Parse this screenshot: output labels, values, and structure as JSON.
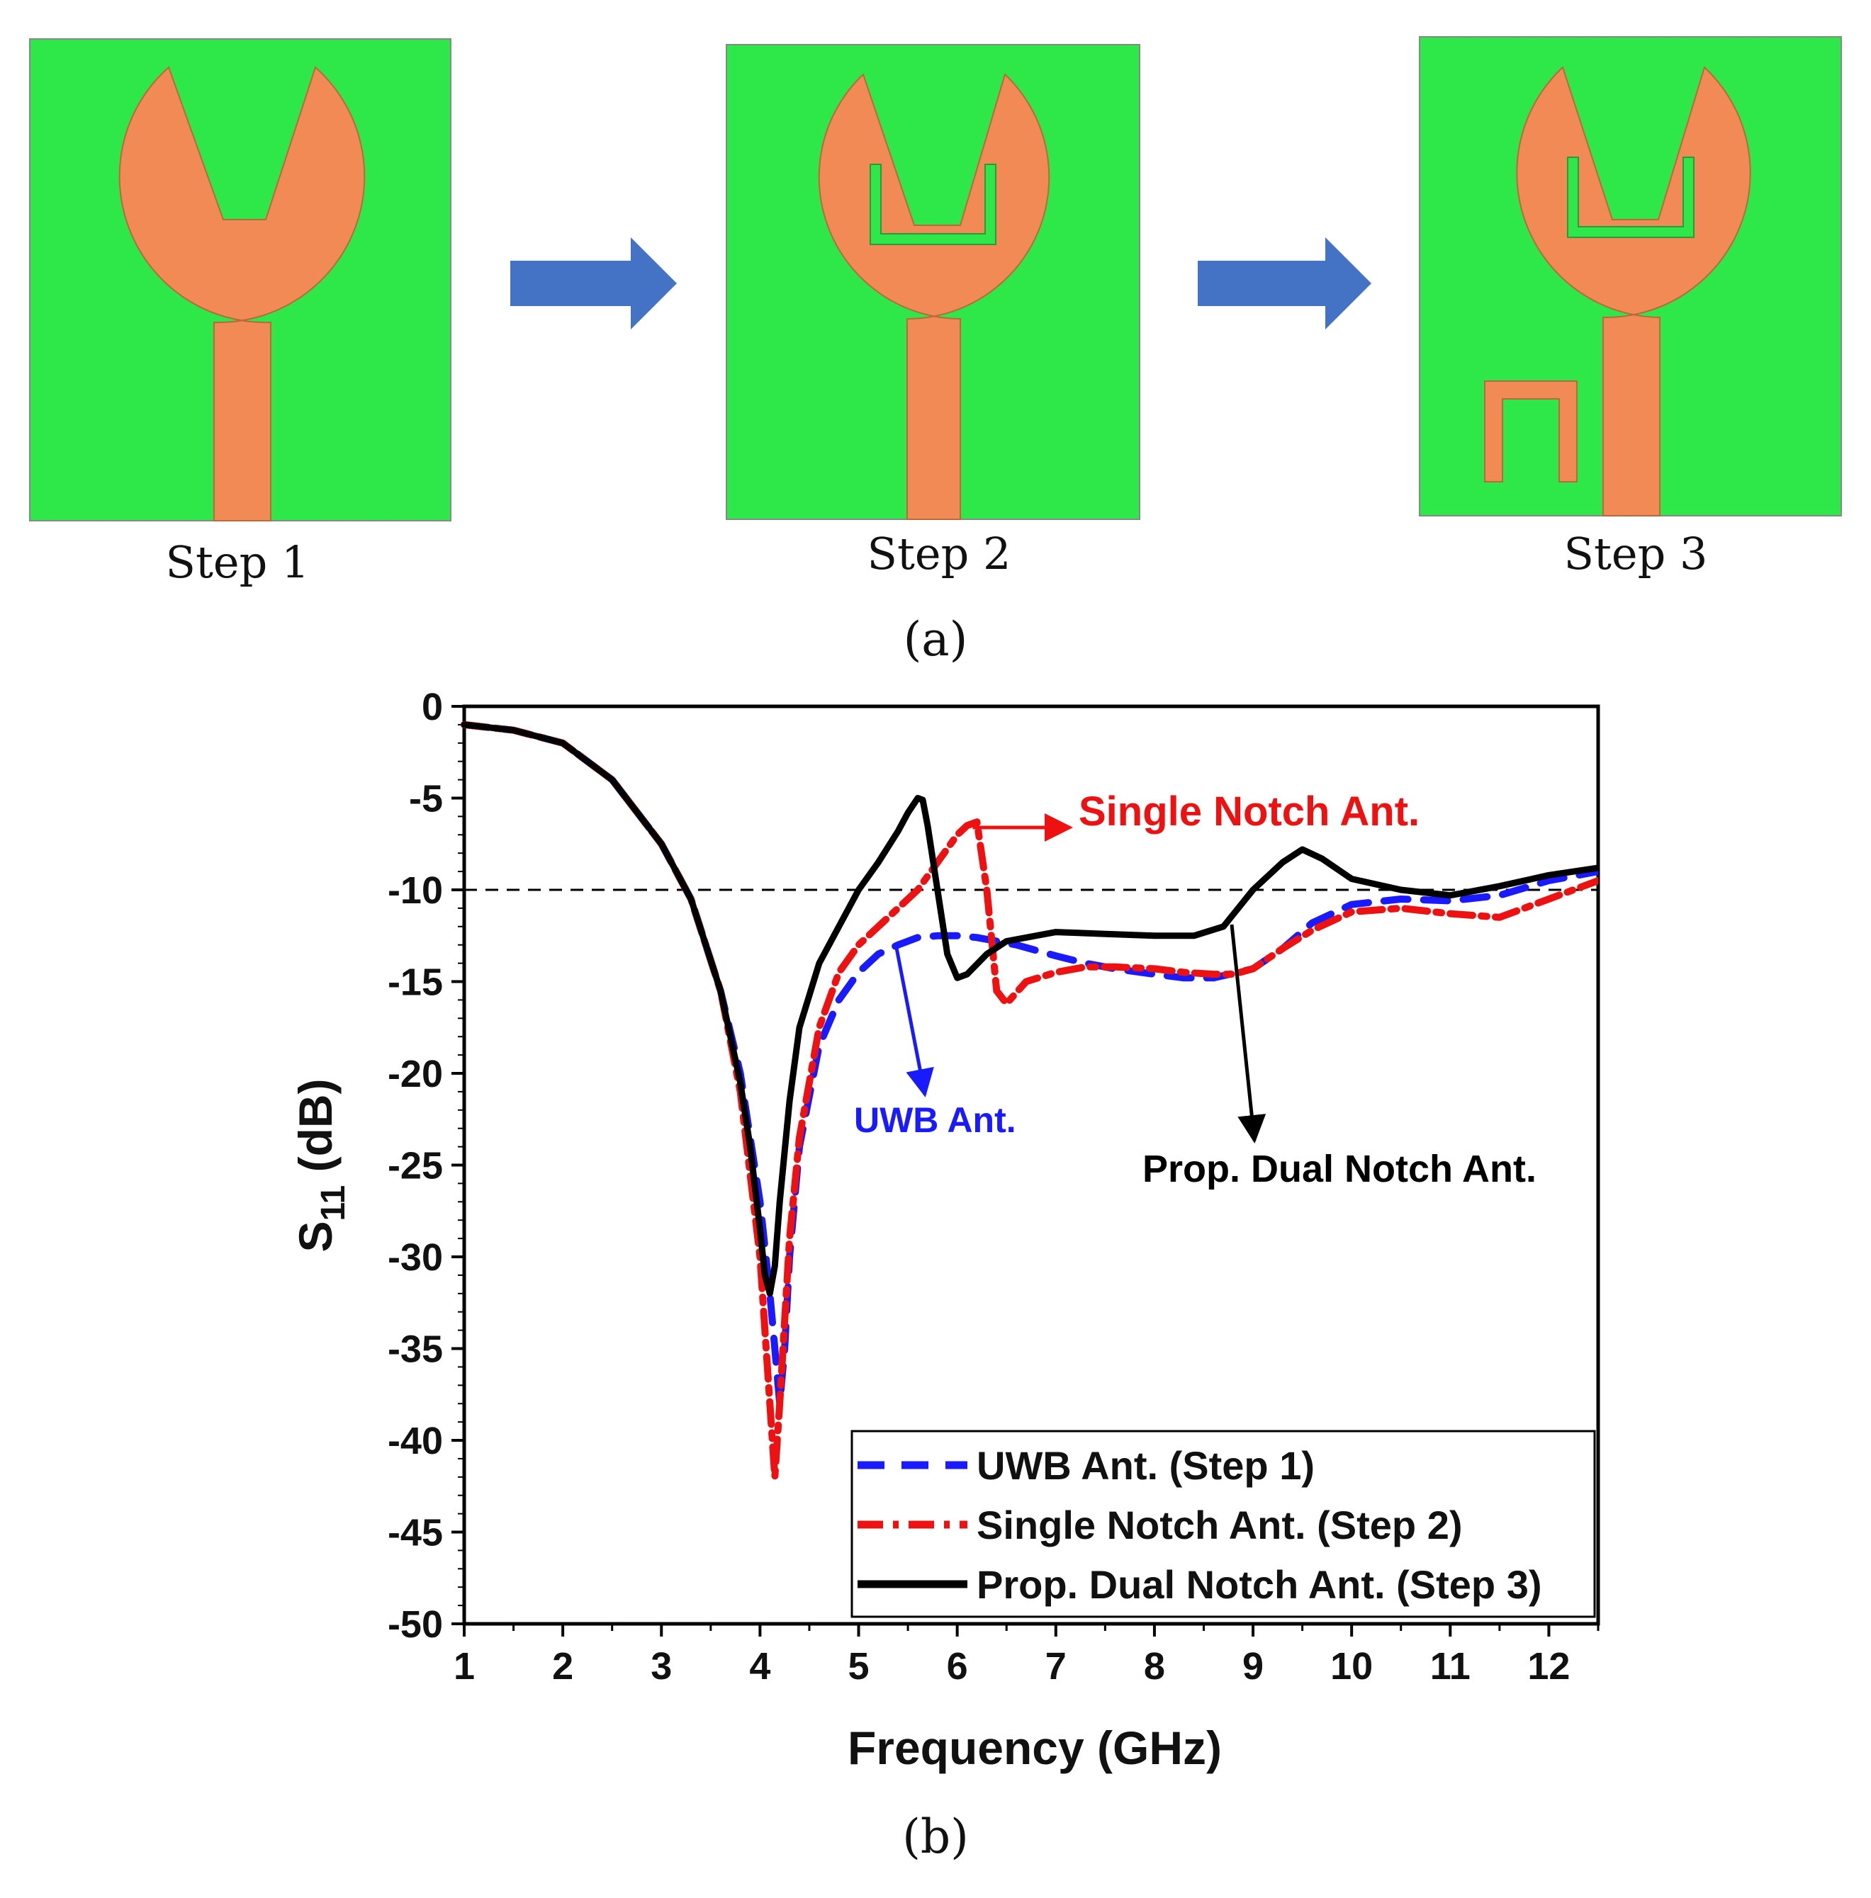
{
  "part_a": {
    "caption": "(a)",
    "steps": [
      {
        "label": "Step 1"
      },
      {
        "label": "Step 2"
      },
      {
        "label": "Step 3"
      }
    ],
    "colors": {
      "substrate": "#2ee84a",
      "patch": "#f28a55",
      "arrow": "#4472c4"
    }
  },
  "part_b": {
    "caption": "(b)"
  },
  "chart_data": {
    "type": "line",
    "title": "",
    "xlabel": "Frequency (GHz)",
    "ylabel_main": "S",
    "ylabel_sub": "11",
    "ylabel_unit": " (dB)",
    "xlim": [
      1,
      12.5
    ],
    "ylim": [
      -50,
      0
    ],
    "xticks": [
      1,
      2,
      3,
      4,
      5,
      6,
      7,
      8,
      9,
      10,
      11,
      12
    ],
    "yticks": [
      0,
      -5,
      -10,
      -15,
      -20,
      -25,
      -30,
      -35,
      -40,
      -45,
      -50
    ],
    "reference_line": -10,
    "series": [
      {
        "name": "UWB Ant. (Step 1)",
        "color": "#1a1aff",
        "style": "dash",
        "x": [
          1.0,
          1.5,
          2.0,
          2.5,
          3.0,
          3.3,
          3.6,
          3.8,
          4.0,
          4.1,
          4.15,
          4.2,
          4.25,
          4.3,
          4.4,
          4.6,
          4.8,
          5.0,
          5.2,
          5.4,
          5.6,
          5.8,
          6.0,
          6.2,
          6.4,
          6.6,
          6.8,
          7.0,
          7.3,
          7.6,
          8.0,
          8.3,
          8.6,
          9.0,
          9.3,
          9.6,
          10.0,
          10.5,
          11.0,
          11.5,
          12.0,
          12.5
        ],
        "y": [
          -1.0,
          -1.3,
          -2.0,
          -4.0,
          -7.5,
          -10.5,
          -15.5,
          -20.0,
          -27.0,
          -32.0,
          -35.0,
          -38.0,
          -35.0,
          -30.0,
          -24.0,
          -18.5,
          -16.0,
          -14.5,
          -13.5,
          -13.0,
          -12.6,
          -12.5,
          -12.5,
          -12.6,
          -12.8,
          -13.0,
          -13.3,
          -13.6,
          -14.0,
          -14.3,
          -14.6,
          -14.8,
          -14.8,
          -14.3,
          -13.2,
          -11.8,
          -10.8,
          -10.5,
          -10.6,
          -10.3,
          -9.5,
          -9.0
        ]
      },
      {
        "name": "Single Notch Ant. (Step 2)",
        "color": "#ee1111",
        "style": "dashdot",
        "x": [
          1.0,
          1.5,
          2.0,
          2.5,
          3.0,
          3.3,
          3.6,
          3.8,
          4.0,
          4.05,
          4.1,
          4.15,
          4.2,
          4.3,
          4.4,
          4.6,
          4.8,
          5.0,
          5.2,
          5.4,
          5.6,
          5.8,
          6.0,
          6.1,
          6.2,
          6.3,
          6.4,
          6.5,
          6.7,
          7.0,
          7.3,
          7.6,
          8.0,
          8.3,
          8.6,
          8.8,
          9.0,
          9.3,
          9.6,
          10.0,
          10.5,
          11.0,
          11.5,
          12.0,
          12.5
        ],
        "y": [
          -1.0,
          -1.3,
          -2.0,
          -4.0,
          -7.5,
          -10.5,
          -15.5,
          -21.0,
          -30.0,
          -34.0,
          -38.0,
          -42.0,
          -38.0,
          -29.0,
          -23.5,
          -17.5,
          -14.5,
          -13.0,
          -12.0,
          -11.0,
          -10.0,
          -8.5,
          -7.0,
          -6.5,
          -6.3,
          -10.0,
          -15.5,
          -16.2,
          -15.0,
          -14.5,
          -14.2,
          -14.2,
          -14.3,
          -14.5,
          -14.6,
          -14.6,
          -14.3,
          -13.2,
          -12.2,
          -11.2,
          -11.0,
          -11.3,
          -11.5,
          -10.5,
          -9.5
        ]
      },
      {
        "name": "Prop. Dual Notch Ant. (Step 3)",
        "color": "#000000",
        "style": "solid",
        "x": [
          1.0,
          1.5,
          2.0,
          2.5,
          3.0,
          3.3,
          3.6,
          3.8,
          3.9,
          4.0,
          4.05,
          4.1,
          4.15,
          4.2,
          4.3,
          4.4,
          4.6,
          4.8,
          5.0,
          5.2,
          5.4,
          5.5,
          5.6,
          5.65,
          5.7,
          5.8,
          5.9,
          6.0,
          6.1,
          6.3,
          6.5,
          7.0,
          7.5,
          8.0,
          8.4,
          8.7,
          9.0,
          9.3,
          9.5,
          9.7,
          10.0,
          10.5,
          11.0,
          11.5,
          12.0,
          12.5
        ],
        "y": [
          -1.0,
          -1.3,
          -2.0,
          -4.0,
          -7.5,
          -10.5,
          -15.5,
          -20.5,
          -24.0,
          -28.5,
          -31.0,
          -32.0,
          -30.5,
          -27.0,
          -21.5,
          -17.5,
          -14.0,
          -12.0,
          -10.0,
          -8.5,
          -6.8,
          -5.8,
          -5.0,
          -5.1,
          -6.5,
          -10.0,
          -13.5,
          -14.8,
          -14.6,
          -13.5,
          -12.8,
          -12.3,
          -12.4,
          -12.5,
          -12.5,
          -12.0,
          -10.0,
          -8.5,
          -7.8,
          -8.3,
          -9.4,
          -10.0,
          -10.3,
          -9.8,
          -9.2,
          -8.8
        ]
      }
    ],
    "annotations": [
      {
        "text": "Single Notch Ant.",
        "color": "#ee1111"
      },
      {
        "text": "UWB Ant.",
        "color": "#1a1aff"
      },
      {
        "text": "Prop. Dual Notch Ant.",
        "color": "#000000"
      }
    ]
  }
}
